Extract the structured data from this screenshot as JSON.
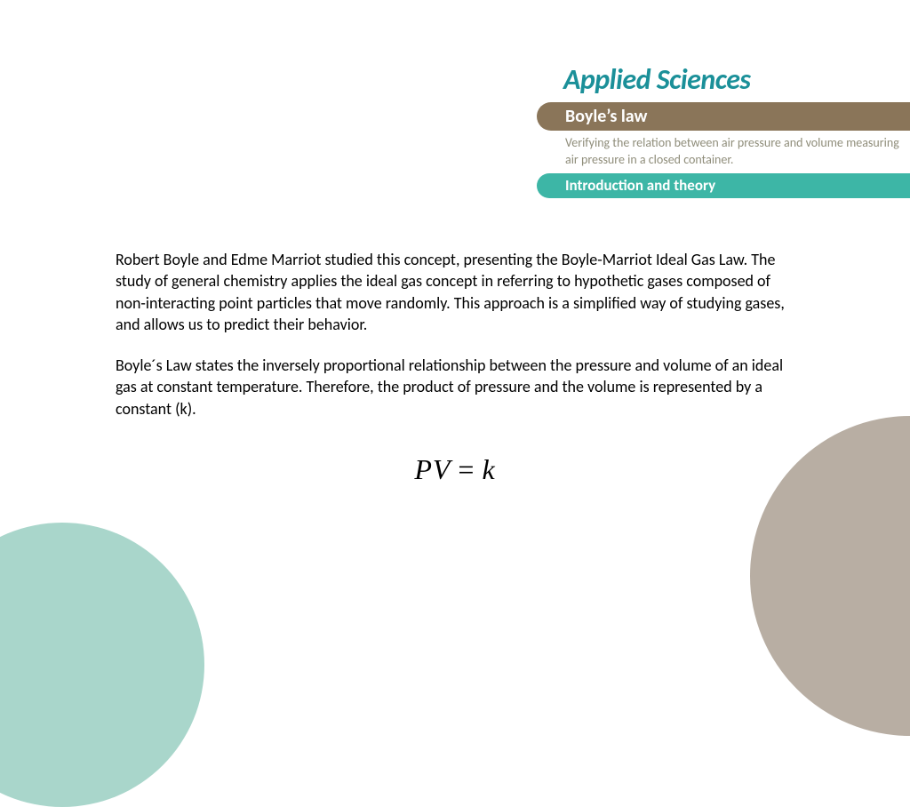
{
  "colors": {
    "brand_teal": "#1b9099",
    "topic_bar": "#8a7559",
    "subtitle_text": "#8f8d7a",
    "section_bar": "#3db6a6",
    "deco_teal": "#a9d6cb",
    "deco_taupe": "#b8aea3",
    "body_text": "#000000",
    "background": "#ffffff"
  },
  "header": {
    "brand": "Applied Sciences",
    "topic": "Boyle’s law",
    "subtitle": "Verifying the relation between air pressure and volume measuring air pressure in a closed container.",
    "section": "Introduction and theory"
  },
  "body": {
    "p1": "Robert Boyle and Edme Marriot studied this concept, presenting the Boyle-Marriot Ideal Gas Law. The study of general chemistry applies the ideal gas concept in referring to hypothetic gases composed of non-interacting point particles that move randomly. This approach is a simplified way of studying gases, and allows us to predict their behavior.",
    "p2": "Boyle´s Law states the inversely proportional relationship between the pressure and volume of an ideal gas at constant temperature. Therefore, the product of pressure and the volume is represented by a constant (k)."
  },
  "equation": {
    "lhs": "PV",
    "op": "=",
    "rhs": "k"
  },
  "typography": {
    "brand_fontsize": 32,
    "topic_fontsize": 20,
    "subtitle_fontsize": 14,
    "section_fontsize": 17,
    "body_fontsize": 18,
    "equation_fontsize": 32
  }
}
